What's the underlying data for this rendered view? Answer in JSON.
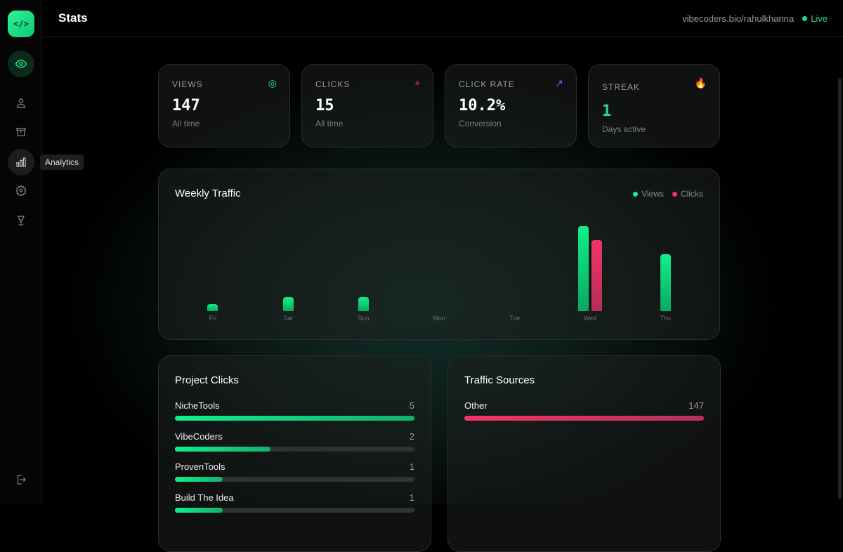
{
  "sidebar": {
    "logo": "</>",
    "items": [
      {
        "icon": "eye-icon",
        "active": true
      },
      {
        "icon": "user-icon"
      },
      {
        "icon": "archive-icon"
      },
      {
        "icon": "bar-chart-icon",
        "hover": true
      },
      {
        "icon": "gear-icon"
      },
      {
        "icon": "trophy-icon"
      }
    ],
    "tooltip": "Analytics",
    "logout_icon": "logout-icon"
  },
  "header": {
    "title": "Stats",
    "url": "vibecoders.bio/rahulkhanna",
    "status": "Live"
  },
  "stats": [
    {
      "label": "VIEWS",
      "value": "147",
      "sub": "All time",
      "icon": "eye-icon",
      "color": "#22e08a"
    },
    {
      "label": "CLICKS",
      "value": "15",
      "sub": "All time",
      "icon": "cursor-click-icon",
      "color": "#f5336a"
    },
    {
      "label": "CLICK RATE",
      "value": "10.2%",
      "sub": "Conversion",
      "icon": "trending-up-icon",
      "color": "#7b5cf5"
    },
    {
      "label": "STREAK",
      "value": "1",
      "sub": "Days active",
      "icon": "fire-icon",
      "color": "#22e08a"
    }
  ],
  "chart_data": {
    "type": "bar",
    "title": "Weekly Traffic",
    "categories": [
      "Fri",
      "Sat",
      "Sun",
      "Mon",
      "Tue",
      "Wed",
      "Thu"
    ],
    "series": [
      {
        "name": "Views",
        "color": "#10f08a",
        "values": [
          1,
          2,
          2,
          0,
          0,
          12,
          8
        ]
      },
      {
        "name": "Clicks",
        "color": "#f5336a",
        "values": [
          0,
          0,
          0,
          0,
          0,
          10,
          0
        ]
      }
    ],
    "legend": "top-right",
    "grid": false
  },
  "project_clicks": {
    "title": "Project Clicks",
    "items": [
      {
        "name": "NicheTools",
        "count": 5
      },
      {
        "name": "VibeCoders",
        "count": 2
      },
      {
        "name": "ProvenTools",
        "count": 1
      },
      {
        "name": "Build The Idea",
        "count": 1
      }
    ]
  },
  "traffic_sources": {
    "title": "Traffic Sources",
    "items": [
      {
        "name": "Other",
        "count": 147
      }
    ]
  }
}
